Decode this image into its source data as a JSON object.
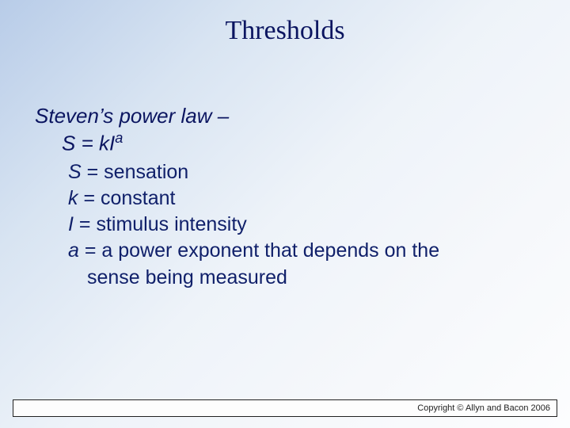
{
  "colors": {
    "text_primary": "#0b1560",
    "text_body": "#10206a",
    "gradient_start": "#b8cce8",
    "gradient_end": "#fcfdfe",
    "footer_border": "#222222",
    "footer_bg": "#fdfdfd"
  },
  "typography": {
    "title_font": "Times New Roman",
    "body_font": "Arial",
    "title_size_pt": 26,
    "body_size_pt": 19
  },
  "title": "Thresholds",
  "subtitle": "Steven’s power law –",
  "formula": {
    "base": "S = kI",
    "exponent": "a"
  },
  "defs": [
    {
      "var": "S",
      "text": " = sensation"
    },
    {
      "var": "k",
      "text": " = constant"
    },
    {
      "var": "I",
      "text": " = stimulus intensity"
    },
    {
      "var": "a",
      "text": " = a power exponent that depends on the"
    }
  ],
  "def_continuation": "sense being measured",
  "footer": "Copyright © Allyn and Bacon 2006"
}
